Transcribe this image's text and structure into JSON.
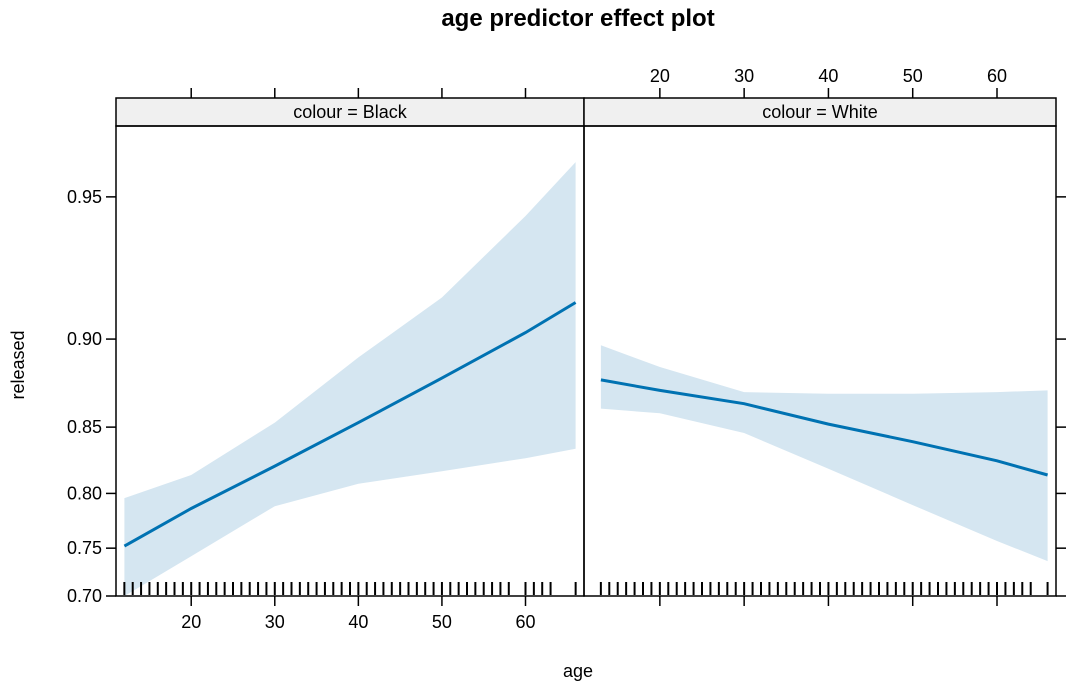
{
  "chart_data": {
    "type": "line",
    "title": "age predictor effect plot",
    "xlabel": "age",
    "ylabel": "released",
    "x_ticks": [
      20,
      30,
      40,
      50,
      60
    ],
    "y_ticks": [
      0.7,
      0.75,
      0.8,
      0.85,
      0.9,
      0.95
    ],
    "y_tick_labels": [
      "0.70",
      "0.75",
      "0.80",
      "0.85",
      "0.90",
      "0.95"
    ],
    "y_scale": "logit",
    "xlim": [
      11,
      67
    ],
    "ylim": [
      0.7,
      0.965
    ],
    "grid": false,
    "colors": {
      "line": "#0072B2",
      "band": "#d5e6f1",
      "strip": "#f0f0f0",
      "frame": "#000000"
    },
    "panels": [
      {
        "strip_label": "colour = Black",
        "x": [
          12,
          20,
          30,
          40,
          50,
          60,
          66
        ],
        "fit": [
          0.752,
          0.787,
          0.822,
          0.853,
          0.88,
          0.903,
          0.916
        ],
        "lower": [
          0.7,
          0.742,
          0.789,
          0.808,
          0.818,
          0.828,
          0.835
        ],
        "upper": [
          0.796,
          0.815,
          0.853,
          0.891,
          0.918,
          0.945,
          0.958
        ],
        "rug": [
          12,
          13,
          14,
          15,
          16,
          17,
          18,
          19,
          20,
          21,
          22,
          23,
          24,
          25,
          26,
          27,
          28,
          29,
          30,
          31,
          32,
          33,
          34,
          35,
          36,
          37,
          38,
          39,
          40,
          41,
          42,
          43,
          44,
          45,
          46,
          47,
          48,
          49,
          50,
          51,
          52,
          53,
          54,
          55,
          56,
          57,
          58,
          60,
          61,
          62,
          63,
          66
        ]
      },
      {
        "strip_label": "colour = White",
        "x": [
          13,
          20,
          30,
          40,
          50,
          60,
          66
        ],
        "fit": [
          0.879,
          0.873,
          0.865,
          0.852,
          0.84,
          0.826,
          0.815
        ],
        "lower": [
          0.862,
          0.859,
          0.846,
          0.82,
          0.79,
          0.757,
          0.737
        ],
        "upper": [
          0.897,
          0.886,
          0.872,
          0.871,
          0.871,
          0.872,
          0.873
        ],
        "rug": [
          13,
          14,
          15,
          16,
          17,
          18,
          19,
          20,
          21,
          22,
          23,
          24,
          25,
          26,
          27,
          28,
          29,
          30,
          31,
          32,
          33,
          34,
          35,
          36,
          37,
          38,
          39,
          40,
          41,
          42,
          43,
          44,
          45,
          46,
          47,
          48,
          49,
          50,
          51,
          52,
          53,
          54,
          55,
          56,
          57,
          58,
          59,
          60,
          61,
          62,
          63,
          64,
          66
        ]
      }
    ]
  }
}
